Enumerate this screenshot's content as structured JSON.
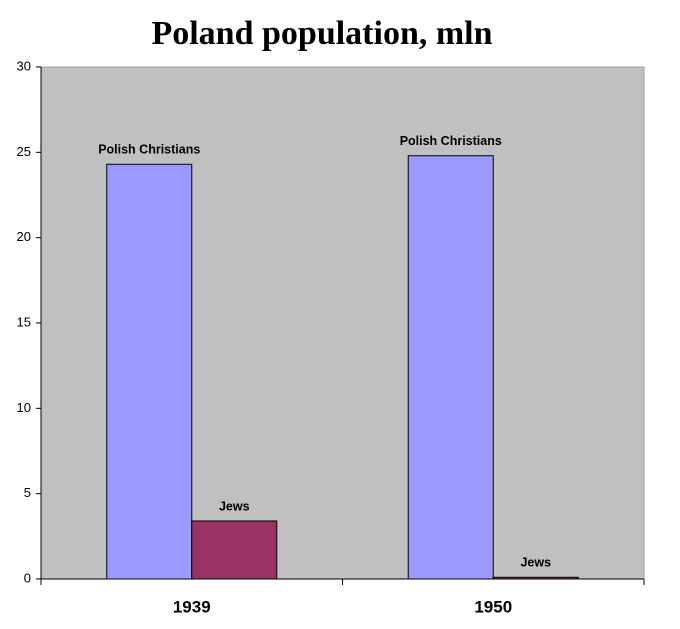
{
  "chart_data": {
    "type": "bar",
    "title": "Poland population, mln",
    "categories": [
      "1939",
      "1950"
    ],
    "series": [
      {
        "name": "Polish Christians",
        "color": "#9999ff",
        "values": [
          24.3,
          24.8
        ]
      },
      {
        "name": "Jews",
        "color": "#993366",
        "values": [
          3.4,
          0.1
        ]
      }
    ],
    "ylim": [
      0,
      30
    ],
    "yticks": [
      0,
      5,
      10,
      15,
      20,
      25,
      30
    ],
    "grid": false
  }
}
